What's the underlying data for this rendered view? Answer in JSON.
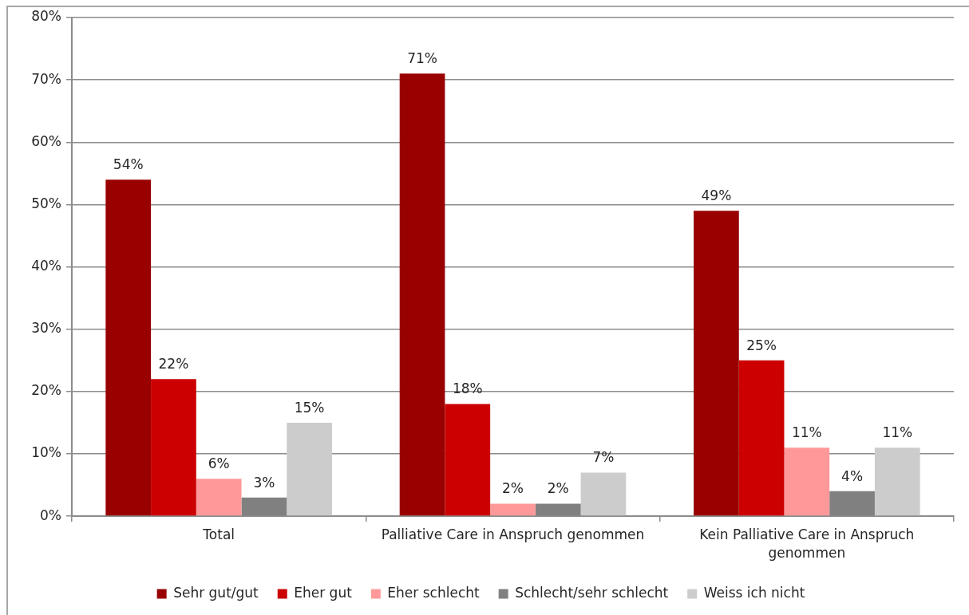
{
  "chart_data": {
    "type": "bar",
    "categories": [
      "Total",
      "Palliative Care in Anspruch genommen",
      "Kein Palliative Care in Anspruch genommen"
    ],
    "series": [
      {
        "name": "Sehr gut/gut",
        "color": "#990000",
        "values": [
          54,
          71,
          49
        ],
        "value_labels": [
          "54%",
          "71%",
          "49%"
        ]
      },
      {
        "name": "Eher gut",
        "color": "#cc0000",
        "values": [
          22,
          18,
          25
        ],
        "value_labels": [
          "22%",
          "18%",
          "25%"
        ]
      },
      {
        "name": "Eher schlecht",
        "color": "#ff9999",
        "values": [
          6,
          2,
          11
        ],
        "value_labels": [
          "6%",
          "2%",
          "11%"
        ]
      },
      {
        "name": "Schlecht/sehr schlecht",
        "color": "#808080",
        "values": [
          3,
          2,
          4
        ],
        "value_labels": [
          "3%",
          "2%",
          "4%"
        ]
      },
      {
        "name": "Weiss ich nicht",
        "color": "#cccccc",
        "values": [
          15,
          7,
          11
        ],
        "value_labels": [
          "15%",
          "7%",
          "11%"
        ]
      }
    ],
    "ylim": [
      0,
      80
    ],
    "yticks": [
      {
        "value": 0,
        "label": "0%"
      },
      {
        "value": 10,
        "label": "10%"
      },
      {
        "value": 20,
        "label": "20%"
      },
      {
        "value": 30,
        "label": "30%"
      },
      {
        "value": 40,
        "label": "40%"
      },
      {
        "value": 50,
        "label": "50%"
      },
      {
        "value": 60,
        "label": "60%"
      },
      {
        "value": 70,
        "label": "70%"
      },
      {
        "value": 80,
        "label": "80%"
      }
    ],
    "grid": "y",
    "legend": "bottom"
  }
}
